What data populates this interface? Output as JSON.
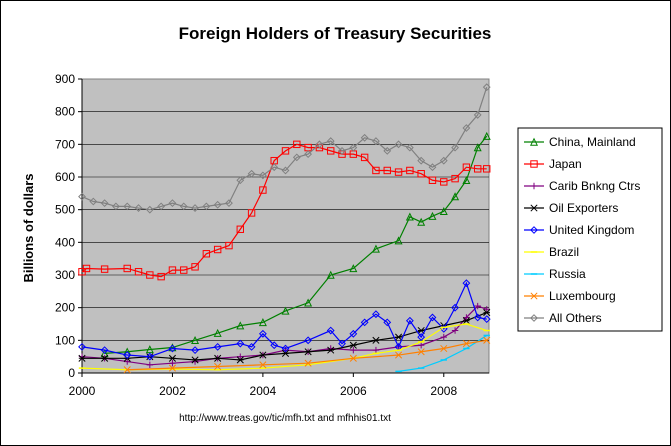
{
  "chart_data": {
    "type": "line",
    "title": "Foreign Holders of Treasury Securities",
    "ylabel": "Billions of dollars",
    "xlabel": "",
    "source": "http://www.treas.gov/tic/mfh.txt and mfhhis01.txt",
    "xlim": [
      2000,
      2009
    ],
    "ylim": [
      0,
      900
    ],
    "xticks": [
      2000,
      2002,
      2004,
      2006,
      2008
    ],
    "yticks": [
      0,
      100,
      200,
      300,
      400,
      500,
      600,
      700,
      800,
      900
    ],
    "grid": "horizontal",
    "legend_position": "right",
    "background": "#c0c0c0",
    "series": [
      {
        "name": "China, Mainland",
        "color": "#008000",
        "marker": "triangle",
        "points": [
          [
            2000.5,
            60
          ],
          [
            2001,
            65
          ],
          [
            2001.5,
            72
          ],
          [
            2002,
            78
          ],
          [
            2002.5,
            100
          ],
          [
            2003,
            122
          ],
          [
            2003.5,
            145
          ],
          [
            2004,
            155
          ],
          [
            2004.5,
            190
          ],
          [
            2005,
            215
          ],
          [
            2005.5,
            300
          ],
          [
            2006,
            320
          ],
          [
            2006.5,
            380
          ],
          [
            2007,
            405
          ],
          [
            2007.25,
            478
          ],
          [
            2007.5,
            462
          ],
          [
            2007.75,
            480
          ],
          [
            2008,
            495
          ],
          [
            2008.25,
            540
          ],
          [
            2008.5,
            590
          ],
          [
            2008.75,
            690
          ],
          [
            2008.95,
            725
          ]
        ]
      },
      {
        "name": "Japan",
        "color": "#ff0000",
        "marker": "square",
        "points": [
          [
            2000,
            310
          ],
          [
            2000.1,
            320
          ],
          [
            2000.5,
            318
          ],
          [
            2001,
            320
          ],
          [
            2001.25,
            310
          ],
          [
            2001.5,
            300
          ],
          [
            2001.75,
            295
          ],
          [
            2002,
            315
          ],
          [
            2002.25,
            315
          ],
          [
            2002.5,
            325
          ],
          [
            2002.75,
            365
          ],
          [
            2003,
            378
          ],
          [
            2003.25,
            390
          ],
          [
            2003.5,
            440
          ],
          [
            2003.75,
            490
          ],
          [
            2004,
            560
          ],
          [
            2004.25,
            650
          ],
          [
            2004.5,
            680
          ],
          [
            2004.75,
            700
          ],
          [
            2005,
            690
          ],
          [
            2005.25,
            690
          ],
          [
            2005.5,
            680
          ],
          [
            2005.75,
            670
          ],
          [
            2006,
            670
          ],
          [
            2006.25,
            660
          ],
          [
            2006.5,
            620
          ],
          [
            2006.75,
            620
          ],
          [
            2007,
            615
          ],
          [
            2007.25,
            620
          ],
          [
            2007.5,
            610
          ],
          [
            2007.75,
            590
          ],
          [
            2008,
            585
          ],
          [
            2008.25,
            595
          ],
          [
            2008.5,
            630
          ],
          [
            2008.75,
            625
          ],
          [
            2008.95,
            625
          ]
        ]
      },
      {
        "name": "Carib Bnkng Ctrs",
        "color": "#800080",
        "marker": "plus",
        "points": [
          [
            2000,
            50
          ],
          [
            2000.5,
            45
          ],
          [
            2001,
            35
          ],
          [
            2001.5,
            25
          ],
          [
            2002,
            30
          ],
          [
            2002.5,
            35
          ],
          [
            2003,
            45
          ],
          [
            2003.5,
            50
          ],
          [
            2004,
            55
          ],
          [
            2004.5,
            70
          ],
          [
            2005,
            65
          ],
          [
            2005.5,
            75
          ],
          [
            2006,
            70
          ],
          [
            2006.5,
            70
          ],
          [
            2007,
            80
          ],
          [
            2007.5,
            85
          ],
          [
            2008,
            110
          ],
          [
            2008.25,
            130
          ],
          [
            2008.5,
            170
          ],
          [
            2008.75,
            205
          ],
          [
            2008.95,
            195
          ]
        ]
      },
      {
        "name": "Oil Exporters",
        "color": "#000000",
        "marker": "asterisk",
        "points": [
          [
            2000,
            45
          ],
          [
            2000.5,
            45
          ],
          [
            2001,
            45
          ],
          [
            2001.5,
            50
          ],
          [
            2002,
            45
          ],
          [
            2002.5,
            40
          ],
          [
            2003,
            45
          ],
          [
            2003.5,
            40
          ],
          [
            2004,
            55
          ],
          [
            2004.5,
            60
          ],
          [
            2005,
            65
          ],
          [
            2005.5,
            70
          ],
          [
            2006,
            85
          ],
          [
            2006.5,
            100
          ],
          [
            2007,
            110
          ],
          [
            2007.5,
            130
          ],
          [
            2008,
            145
          ],
          [
            2008.5,
            160
          ],
          [
            2008.95,
            185
          ]
        ]
      },
      {
        "name": "United Kingdom",
        "color": "#0000ff",
        "marker": "diamond",
        "points": [
          [
            2000,
            80
          ],
          [
            2000.5,
            70
          ],
          [
            2001,
            55
          ],
          [
            2001.5,
            50
          ],
          [
            2002,
            75
          ],
          [
            2002.5,
            70
          ],
          [
            2003,
            80
          ],
          [
            2003.5,
            90
          ],
          [
            2003.75,
            80
          ],
          [
            2004,
            120
          ],
          [
            2004.25,
            85
          ],
          [
            2004.5,
            75
          ],
          [
            2005,
            100
          ],
          [
            2005.5,
            130
          ],
          [
            2005.75,
            90
          ],
          [
            2006,
            120
          ],
          [
            2006.25,
            155
          ],
          [
            2006.5,
            180
          ],
          [
            2006.75,
            155
          ],
          [
            2007,
            80
          ],
          [
            2007.25,
            160
          ],
          [
            2007.5,
            110
          ],
          [
            2007.75,
            170
          ],
          [
            2008,
            135
          ],
          [
            2008.25,
            200
          ],
          [
            2008.5,
            275
          ],
          [
            2008.75,
            170
          ],
          [
            2008.95,
            165
          ]
        ]
      },
      {
        "name": "Brazil",
        "color": "#ffff00",
        "marker": "dash",
        "points": [
          [
            2000,
            15
          ],
          [
            2001,
            10
          ],
          [
            2002,
            12
          ],
          [
            2003,
            10
          ],
          [
            2004,
            15
          ],
          [
            2005,
            25
          ],
          [
            2006,
            45
          ],
          [
            2006.5,
            60
          ],
          [
            2007,
            70
          ],
          [
            2007.5,
            95
          ],
          [
            2008,
            140
          ],
          [
            2008.5,
            150
          ],
          [
            2008.95,
            130
          ]
        ]
      },
      {
        "name": "Russia",
        "color": "#00ccff",
        "marker": "dash",
        "points": [
          [
            2007,
            5
          ],
          [
            2007.5,
            15
          ],
          [
            2008,
            40
          ],
          [
            2008.5,
            75
          ],
          [
            2008.95,
            115
          ]
        ]
      },
      {
        "name": "Luxembourg",
        "color": "#ff8000",
        "marker": "cross",
        "points": [
          [
            2001,
            10
          ],
          [
            2002,
            15
          ],
          [
            2003,
            20
          ],
          [
            2004,
            25
          ],
          [
            2005,
            30
          ],
          [
            2006,
            45
          ],
          [
            2007,
            55
          ],
          [
            2007.5,
            65
          ],
          [
            2008,
            75
          ],
          [
            2008.5,
            90
          ],
          [
            2008.95,
            100
          ]
        ]
      },
      {
        "name": "All Others",
        "color": "#808080",
        "marker": "diamond",
        "points": [
          [
            2000,
            540
          ],
          [
            2000.25,
            525
          ],
          [
            2000.5,
            520
          ],
          [
            2000.75,
            510
          ],
          [
            2001,
            510
          ],
          [
            2001.25,
            505
          ],
          [
            2001.5,
            500
          ],
          [
            2001.75,
            510
          ],
          [
            2002,
            520
          ],
          [
            2002.25,
            510
          ],
          [
            2002.5,
            505
          ],
          [
            2002.75,
            510
          ],
          [
            2003,
            515
          ],
          [
            2003.25,
            520
          ],
          [
            2003.5,
            590
          ],
          [
            2003.75,
            610
          ],
          [
            2004,
            605
          ],
          [
            2004.25,
            630
          ],
          [
            2004.5,
            620
          ],
          [
            2004.75,
            660
          ],
          [
            2005,
            670
          ],
          [
            2005.25,
            700
          ],
          [
            2005.5,
            710
          ],
          [
            2005.75,
            680
          ],
          [
            2006,
            690
          ],
          [
            2006.25,
            720
          ],
          [
            2006.5,
            710
          ],
          [
            2006.75,
            680
          ],
          [
            2007,
            700
          ],
          [
            2007.25,
            690
          ],
          [
            2007.5,
            650
          ],
          [
            2007.75,
            630
          ],
          [
            2008,
            650
          ],
          [
            2008.25,
            690
          ],
          [
            2008.5,
            750
          ],
          [
            2008.75,
            790
          ],
          [
            2008.95,
            875
          ]
        ]
      }
    ]
  }
}
